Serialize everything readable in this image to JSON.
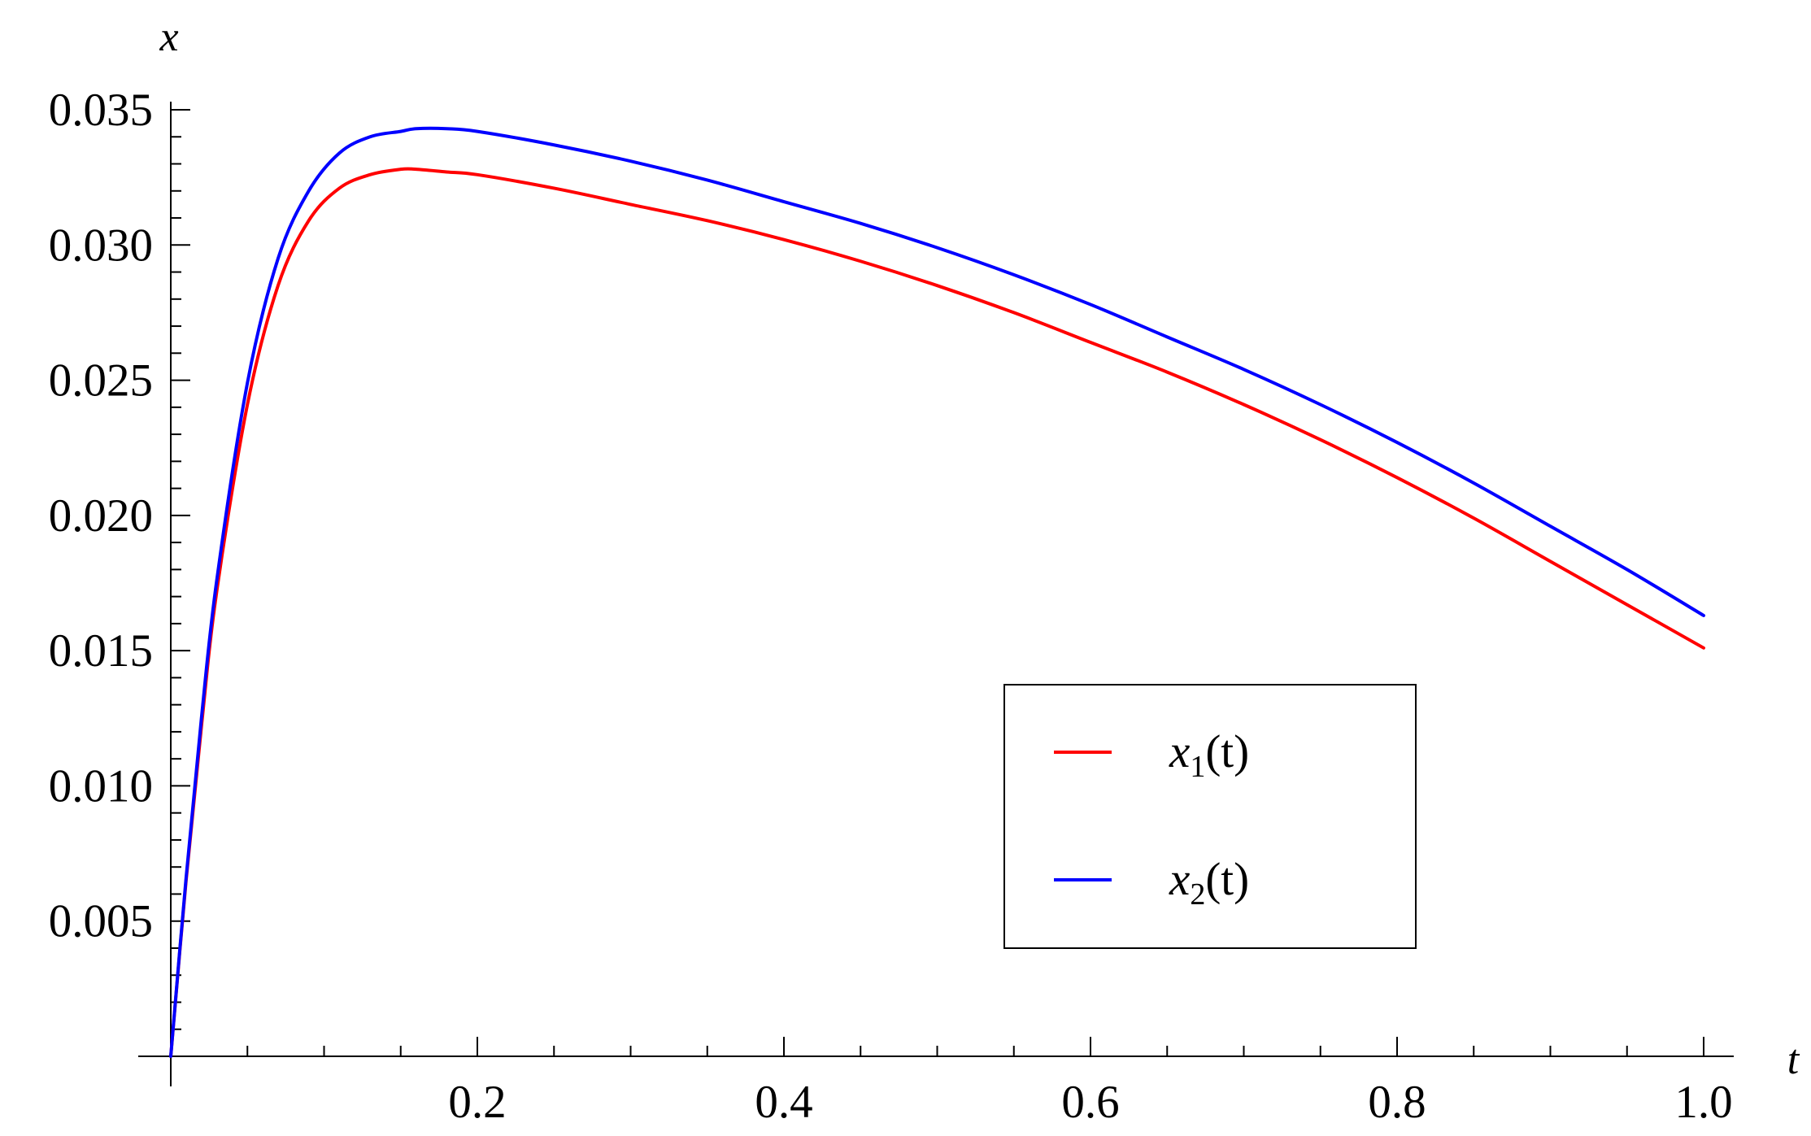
{
  "chart_data": {
    "type": "line",
    "title": "",
    "xlabel": "t",
    "ylabel": "x",
    "xlim": [
      0,
      1.0
    ],
    "ylim": [
      0,
      0.035
    ],
    "x_ticks": [
      "0.2",
      "0.4",
      "0.6",
      "0.8",
      "1.0"
    ],
    "x_tick_values": [
      0.2,
      0.4,
      0.6,
      0.8,
      1.0
    ],
    "y_ticks": [
      "0.005",
      "0.010",
      "0.015",
      "0.020",
      "0.025",
      "0.030",
      "0.035"
    ],
    "y_tick_values": [
      0.005,
      0.01,
      0.015,
      0.02,
      0.025,
      0.03,
      0.035
    ],
    "grid": false,
    "legend_position": "center-right",
    "series": [
      {
        "name": "x1(t)",
        "label_var": "x",
        "label_sub": "1",
        "label_arg": "(t)",
        "color": "#ff0000",
        "x": [
          0,
          0.01,
          0.02,
          0.03,
          0.05,
          0.07,
          0.09,
          0.11,
          0.13,
          0.15,
          0.16,
          0.18,
          0.2,
          0.25,
          0.3,
          0.35,
          0.4,
          0.45,
          0.5,
          0.55,
          0.6,
          0.65,
          0.7,
          0.75,
          0.8,
          0.85,
          0.9,
          0.95,
          1.0
        ],
        "y": [
          0,
          0.0065,
          0.0122,
          0.0172,
          0.0241,
          0.0285,
          0.0309,
          0.0321,
          0.0326,
          0.0328,
          0.0328,
          0.0327,
          0.0326,
          0.0321,
          0.0315,
          0.0309,
          0.0302,
          0.0294,
          0.0285,
          0.0275,
          0.0264,
          0.0253,
          0.0241,
          0.0228,
          0.0214,
          0.0199,
          0.0183,
          0.0167,
          0.0151
        ]
      },
      {
        "name": "x2(t)",
        "label_var": "x",
        "label_sub": "2",
        "label_arg": "(t)",
        "color": "#0000ff",
        "x": [
          0,
          0.01,
          0.02,
          0.03,
          0.05,
          0.07,
          0.09,
          0.11,
          0.13,
          0.15,
          0.16,
          0.18,
          0.2,
          0.25,
          0.3,
          0.35,
          0.4,
          0.45,
          0.5,
          0.55,
          0.6,
          0.65,
          0.7,
          0.75,
          0.8,
          0.85,
          0.9,
          0.95,
          1.0
        ],
        "y": [
          0,
          0.0066,
          0.0125,
          0.0176,
          0.0249,
          0.0295,
          0.032,
          0.0334,
          0.034,
          0.0342,
          0.0343,
          0.0343,
          0.0342,
          0.0337,
          0.0331,
          0.0324,
          0.0316,
          0.0308,
          0.0299,
          0.0289,
          0.0278,
          0.0266,
          0.0254,
          0.0241,
          0.0227,
          0.0212,
          0.0196,
          0.018,
          0.0163
        ]
      }
    ]
  }
}
